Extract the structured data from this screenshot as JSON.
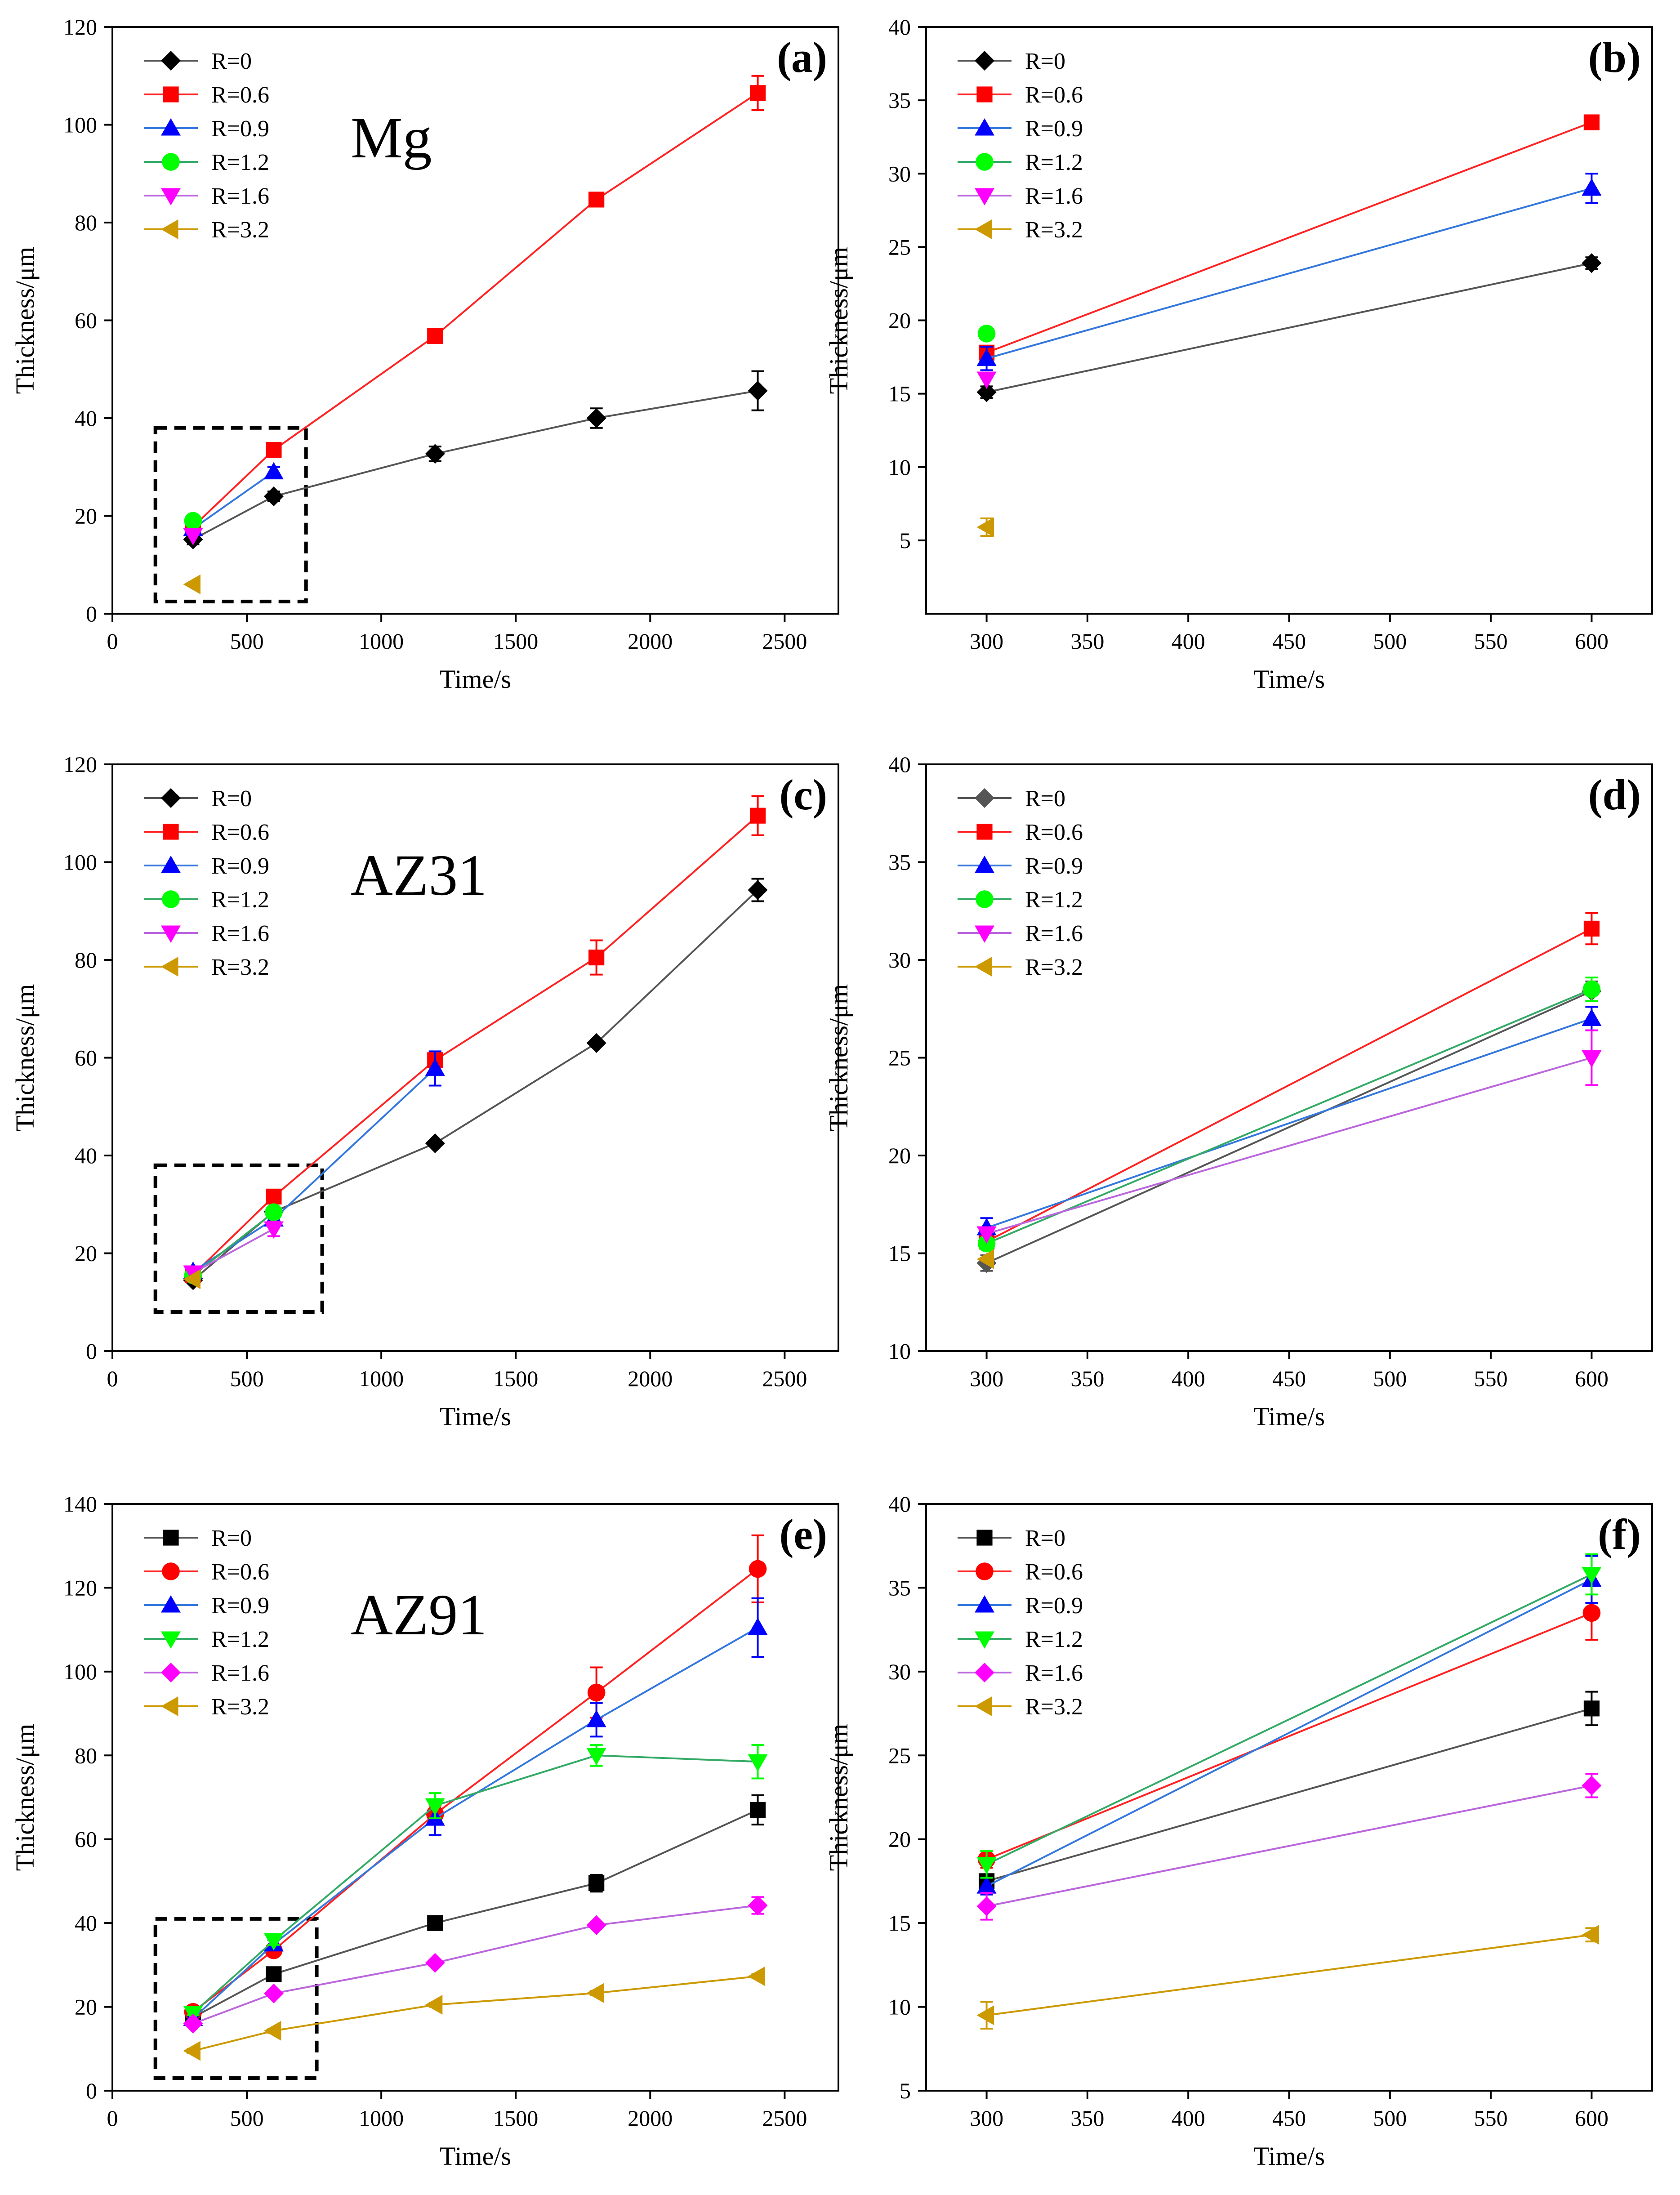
{
  "figure": {
    "colors": {
      "R=0": "#000000",
      "R=0.6": "#ff0000",
      "R=0.9": "#0000ff",
      "R=1.2": "#00ff00",
      "R=1.6": "#ff00ff",
      "R=3.2": "#cc9900"
    },
    "marker_by_series": {
      "R=0": "diamond",
      "R=0.6": "square",
      "R=0.9": "triangle-up",
      "R=1.2": "circle",
      "R=1.6": "triangle-down",
      "R=3.2": "triangle-left"
    }
  },
  "chart_data": [
    {
      "id": "a",
      "type": "line",
      "panel_label": "(a)",
      "material_label": "Mg",
      "xlabel": "Time/s",
      "ylabel": "Thickness/μm",
      "xlim": [
        0,
        2700
      ],
      "ylim": [
        0,
        120
      ],
      "xticks": [
        0,
        500,
        1000,
        1500,
        2000,
        2500
      ],
      "yticks": [
        0,
        20,
        40,
        60,
        80,
        100,
        120
      ],
      "legend": [
        "R=0",
        "R=0.6",
        "R=0.9",
        "R=1.2",
        "R=1.6",
        "R=3.2"
      ],
      "zoom_box": {
        "x": [
          160,
          720
        ],
        "y": [
          2.5,
          38
        ]
      },
      "series": [
        {
          "name": "R=0",
          "x": [
            300,
            600,
            1200,
            1800,
            2400
          ],
          "values": [
            15.2,
            24,
            32.7,
            40,
            45.6
          ],
          "err": [
            1,
            1,
            1.5,
            2,
            4
          ]
        },
        {
          "name": "R=0.6",
          "x": [
            300,
            600,
            1200,
            1800,
            2400
          ],
          "values": [
            17.8,
            33.5,
            56.8,
            84.7,
            106.5
          ],
          "err": [
            0.5,
            0.5,
            0.5,
            0.5,
            3.5
          ]
        },
        {
          "name": "R=0.9",
          "x": [
            300,
            600
          ],
          "values": [
            17.4,
            29
          ],
          "err": [
            0.8,
            1
          ]
        },
        {
          "name": "R=1.2",
          "x": [
            300
          ],
          "values": [
            19
          ],
          "err": [
            0.3
          ]
        },
        {
          "name": "R=1.6",
          "x": [
            300
          ],
          "values": [
            16
          ],
          "err": [
            0.3
          ]
        },
        {
          "name": "R=3.2",
          "x": [
            300
          ],
          "values": [
            6
          ],
          "err": [
            0.3
          ]
        }
      ]
    },
    {
      "id": "b",
      "type": "line",
      "panel_label": "(b)",
      "xlabel": "Time/s",
      "ylabel": "Thickness/μm",
      "xlim": [
        270,
        630
      ],
      "ylim": [
        0,
        40
      ],
      "xticks": [
        300,
        350,
        400,
        450,
        500,
        550,
        600
      ],
      "yticks": [
        5,
        10,
        15,
        20,
        25,
        30,
        35,
        40
      ],
      "legend": [
        "R=0",
        "R=0.6",
        "R=0.9",
        "R=1.2",
        "R=1.6",
        "R=3.2"
      ],
      "series": [
        {
          "name": "R=0",
          "x": [
            300,
            600
          ],
          "values": [
            15.1,
            23.9
          ],
          "err": [
            0.4,
            0.4
          ]
        },
        {
          "name": "R=0.6",
          "x": [
            300,
            600
          ],
          "values": [
            17.8,
            33.5
          ],
          "err": [
            0.3,
            0.3
          ]
        },
        {
          "name": "R=0.9",
          "x": [
            300,
            600
          ],
          "values": [
            17.4,
            29
          ],
          "err": [
            0.8,
            1
          ]
        },
        {
          "name": "R=1.2",
          "x": [
            300
          ],
          "values": [
            19.1
          ],
          "err": [
            0.3
          ]
        },
        {
          "name": "R=1.6",
          "x": [
            300
          ],
          "values": [
            16
          ],
          "err": [
            0.3
          ]
        },
        {
          "name": "R=3.2",
          "x": [
            300
          ],
          "values": [
            5.9
          ],
          "err": [
            0.6
          ]
        }
      ]
    },
    {
      "id": "c",
      "type": "line",
      "panel_label": "(c)",
      "material_label": "AZ31",
      "xlabel": "Time/s",
      "ylabel": "Thickness/μm",
      "xlim": [
        0,
        2700
      ],
      "ylim": [
        0,
        120
      ],
      "xticks": [
        0,
        500,
        1000,
        1500,
        2000,
        2500
      ],
      "yticks": [
        0,
        20,
        40,
        60,
        80,
        100,
        120
      ],
      "legend": [
        "R=0",
        "R=0.6",
        "R=0.9",
        "R=1.2",
        "R=1.6",
        "R=3.2"
      ],
      "zoom_box": {
        "x": [
          160,
          780
        ],
        "y": [
          8,
          38
        ]
      },
      "series": [
        {
          "name": "R=0",
          "x": [
            300,
            600,
            1200,
            1800,
            2400
          ],
          "values": [
            14.5,
            28.5,
            42.5,
            63,
            94.3
          ],
          "err": [
            0.5,
            0.5,
            0.5,
            0.5,
            2.3
          ]
        },
        {
          "name": "R=0.6",
          "x": [
            300,
            600,
            1200,
            1800,
            2400
          ],
          "values": [
            15.6,
            31.6,
            59.5,
            80.5,
            109.5
          ],
          "err": [
            0.3,
            0.5,
            1,
            3.5,
            4
          ]
        },
        {
          "name": "R=0.9",
          "x": [
            300,
            600,
            1200
          ],
          "values": [
            16.3,
            27,
            57.8
          ],
          "err": [
            0.5,
            0.5,
            3.5
          ]
        },
        {
          "name": "R=1.2",
          "x": [
            300,
            600
          ],
          "values": [
            15.5,
            28.4
          ],
          "err": [
            0.3,
            0.5
          ]
        },
        {
          "name": "R=1.6",
          "x": [
            300,
            600
          ],
          "values": [
            16,
            25
          ],
          "err": [
            0.3,
            1.5
          ]
        },
        {
          "name": "R=3.2",
          "x": [
            300
          ],
          "values": [
            14.7
          ],
          "err": [
            0.3
          ]
        }
      ]
    },
    {
      "id": "d",
      "type": "line",
      "panel_label": "(d)",
      "xlabel": "Time/s",
      "ylabel": "Thickness/μm",
      "xlim": [
        270,
        630
      ],
      "ylim": [
        10,
        40
      ],
      "xticks": [
        300,
        350,
        400,
        450,
        500,
        550,
        600
      ],
      "yticks": [
        10,
        15,
        20,
        25,
        30,
        35,
        40
      ],
      "legend": [
        "R=0",
        "R=0.6",
        "R=0.9",
        "R=1.2",
        "R=1.6",
        "R=3.2"
      ],
      "series": [
        {
          "name": "R=0",
          "x": [
            300,
            600
          ],
          "values": [
            14.5,
            28.4
          ],
          "err": [
            0.4,
            0.5
          ]
        },
        {
          "name": "R=0.6",
          "x": [
            300,
            600
          ],
          "values": [
            15.6,
            31.6
          ],
          "err": [
            0.3,
            0.8
          ]
        },
        {
          "name": "R=0.9",
          "x": [
            300,
            600
          ],
          "values": [
            16.3,
            27
          ],
          "err": [
            0.5,
            0.6
          ]
        },
        {
          "name": "R=1.2",
          "x": [
            300,
            600
          ],
          "values": [
            15.5,
            28.5
          ],
          "err": [
            0.3,
            0.6
          ]
        },
        {
          "name": "R=1.6",
          "x": [
            300,
            600
          ],
          "values": [
            16,
            25
          ],
          "err": [
            0.3,
            1.4
          ]
        },
        {
          "name": "R=3.2",
          "x": [
            300
          ],
          "values": [
            14.7
          ],
          "err": [
            0.3
          ]
        }
      ]
    },
    {
      "id": "e",
      "type": "line",
      "panel_label": "(e)",
      "material_label": "AZ91",
      "xlabel": "Time/s",
      "ylabel": "Thickness/μm",
      "xlim": [
        0,
        2700
      ],
      "ylim": [
        0,
        140
      ],
      "xticks": [
        0,
        500,
        1000,
        1500,
        2000,
        2500
      ],
      "yticks": [
        0,
        20,
        40,
        60,
        80,
        100,
        120,
        140
      ],
      "legend": [
        "R=0",
        "R=0.6",
        "R=0.9",
        "R=1.2",
        "R=1.6",
        "R=3.2"
      ],
      "zoom_box": {
        "x": [
          160,
          760
        ],
        "y": [
          3,
          41
        ]
      },
      "series": [
        {
          "name": "R=0",
          "x": [
            300,
            600,
            1200,
            1800,
            2400
          ],
          "values": [
            17.5,
            27.8,
            40,
            49.5,
            67
          ],
          "err": [
            0.5,
            0.5,
            0.5,
            2,
            3.5
          ]
        },
        {
          "name": "R=0.6",
          "x": [
            300,
            600,
            1200,
            1800,
            2400
          ],
          "values": [
            18.8,
            33.5,
            66,
            95,
            124.5
          ],
          "err": [
            0.5,
            1,
            2,
            6,
            8
          ]
        },
        {
          "name": "R=0.9",
          "x": [
            300,
            600,
            1200,
            1800,
            2400
          ],
          "values": [
            17.2,
            35,
            65,
            88.5,
            110.5
          ],
          "err": [
            0.5,
            1,
            4,
            4,
            7
          ]
        },
        {
          "name": "R=1.2",
          "x": [
            300,
            600,
            1200,
            1800,
            2400
          ],
          "values": [
            18.5,
            35.8,
            68,
            80,
            78.5
          ],
          "err": [
            0.5,
            1,
            3,
            2.5,
            4
          ]
        },
        {
          "name": "R=1.6",
          "x": [
            300,
            600,
            1200,
            1800,
            2400
          ],
          "values": [
            16,
            23.2,
            30.5,
            39.5,
            44.2
          ],
          "err": [
            0.5,
            0.5,
            0.5,
            0.5,
            2
          ]
        },
        {
          "name": "R=3.2",
          "x": [
            300,
            600,
            1200,
            1800,
            2400
          ],
          "values": [
            9.5,
            14.3,
            20.5,
            23.3,
            27.3
          ],
          "err": [
            0.5,
            0.5,
            0.5,
            0.5,
            0.5
          ]
        }
      ]
    },
    {
      "id": "f",
      "type": "line",
      "panel_label": "(f)",
      "xlabel": "Time/s",
      "ylabel": "Thickness/μm",
      "xlim": [
        270,
        630
      ],
      "ylim": [
        5,
        40
      ],
      "xticks": [
        300,
        350,
        400,
        450,
        500,
        550,
        600
      ],
      "yticks": [
        5,
        10,
        15,
        20,
        25,
        30,
        35,
        40
      ],
      "legend": [
        "R=0",
        "R=0.6",
        "R=0.9",
        "R=1.2",
        "R=1.6",
        "R=3.2"
      ],
      "series": [
        {
          "name": "R=0",
          "x": [
            300,
            600
          ],
          "values": [
            17.5,
            27.8
          ],
          "err": [
            0.4,
            1
          ]
        },
        {
          "name": "R=0.6",
          "x": [
            300,
            600
          ],
          "values": [
            18.8,
            33.5
          ],
          "err": [
            0.5,
            1.6
          ]
        },
        {
          "name": "R=0.9",
          "x": [
            300,
            600
          ],
          "values": [
            17.2,
            35.5
          ],
          "err": [
            0.5,
            1.4
          ]
        },
        {
          "name": "R=1.2",
          "x": [
            300,
            600
          ],
          "values": [
            18.5,
            35.8
          ],
          "err": [
            0.8,
            1.2
          ]
        },
        {
          "name": "R=1.6",
          "x": [
            300,
            600
          ],
          "values": [
            16,
            23.2
          ],
          "err": [
            0.8,
            0.7
          ]
        },
        {
          "name": "R=3.2",
          "x": [
            300,
            600
          ],
          "values": [
            9.5,
            14.3
          ],
          "err": [
            0.8,
            0.4
          ]
        }
      ]
    }
  ]
}
